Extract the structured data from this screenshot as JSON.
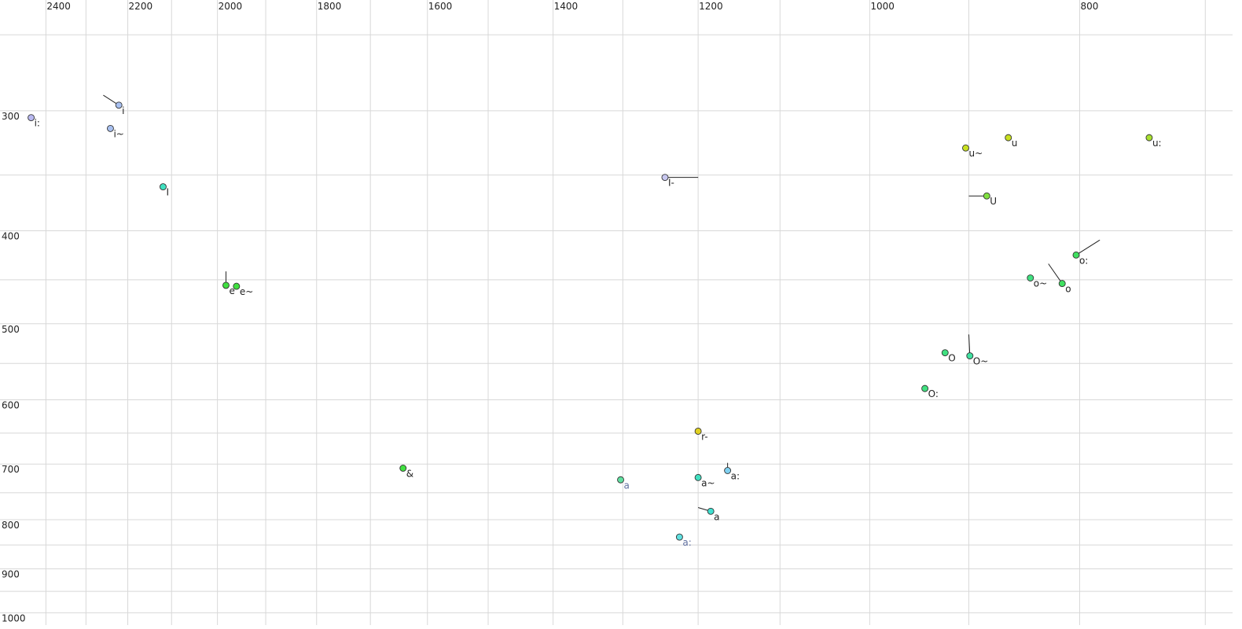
{
  "chart_data": {
    "type": "scatter",
    "xlog": true,
    "ylog": true,
    "xlim": [
      2520,
      680
    ],
    "ylim": [
      230,
      1030
    ],
    "xticks": [
      2400,
      2200,
      2000,
      1800,
      1600,
      1400,
      1200,
      1000,
      800
    ],
    "xminor": [
      2300,
      2100,
      1900,
      1700,
      1500,
      1300,
      1100,
      900,
      700
    ],
    "yticks": [
      300,
      400,
      500,
      600,
      700,
      800,
      900,
      1000
    ],
    "yminor": [
      250,
      350,
      450,
      550,
      650,
      750,
      850,
      950
    ],
    "grid": true,
    "points": [
      {
        "label": "i:",
        "x": 2438,
        "y": 305,
        "color": "#b8b8f0"
      },
      {
        "label": "i",
        "x": 2221,
        "y": 296,
        "color": "#a8c0f0",
        "tail_x": 2258,
        "tail_y": 289
      },
      {
        "label": "i~",
        "x": 2241,
        "y": 313,
        "color": "#a8c0f0"
      },
      {
        "label": "I",
        "x": 2119,
        "y": 360,
        "color": "#40e0c0"
      },
      {
        "label": "e",
        "x": 1982,
        "y": 456,
        "color": "#40e040",
        "tail_x": 1982,
        "tail_y": 441
      },
      {
        "label": "e~",
        "x": 1960,
        "y": 457,
        "color": "#40e040"
      },
      {
        "label": "I-",
        "x": 1243,
        "y": 352,
        "color": "#c8c8f0",
        "tail_x": 1200,
        "tail_y": 352
      },
      {
        "label": "u~",
        "x": 903,
        "y": 328,
        "color": "#c8e020"
      },
      {
        "label": "u",
        "x": 863,
        "y": 320,
        "color": "#c8e020"
      },
      {
        "label": "u:",
        "x": 743,
        "y": 320,
        "color": "#a8e030"
      },
      {
        "label": "U",
        "x": 883,
        "y": 368,
        "color": "#80e040",
        "tail_x": 900,
        "tail_y": 368
      },
      {
        "label": "o:",
        "x": 803,
        "y": 424,
        "color": "#40e060",
        "tail_x": 783,
        "tail_y": 409
      },
      {
        "label": "o~",
        "x": 843,
        "y": 448,
        "color": "#40e080"
      },
      {
        "label": "o",
        "x": 815,
        "y": 454,
        "color": "#40e060",
        "tail_x": 827,
        "tail_y": 433
      },
      {
        "label": "O",
        "x": 923,
        "y": 536,
        "color": "#40e080"
      },
      {
        "label": "O~",
        "x": 899,
        "y": 540,
        "color": "#40e0a0",
        "tail_x": 900,
        "tail_y": 513
      },
      {
        "label": "O:",
        "x": 943,
        "y": 584,
        "color": "#40e080"
      },
      {
        "label": "r-",
        "x": 1200,
        "y": 647,
        "color": "#e0d020"
      },
      {
        "label": "&",
        "x": 1642,
        "y": 707,
        "color": "#40e040"
      },
      {
        "label": "a",
        "x": 1303,
        "y": 727,
        "color": "#60e0a0",
        "label_color": "#6070a0"
      },
      {
        "label": "a~",
        "x": 1200,
        "y": 723,
        "color": "#40e0c0"
      },
      {
        "label": "a:",
        "x": 1163,
        "y": 711,
        "color": "#80d0f0",
        "tail_x": 1163,
        "tail_y": 698
      },
      {
        "label": "a",
        "x": 1184,
        "y": 784,
        "color": "#40e0d0",
        "tail_x": 1200,
        "tail_y": 777
      },
      {
        "label": "a:",
        "x": 1224,
        "y": 834,
        "color": "#60e0e0",
        "label_color": "#6070a0"
      }
    ]
  }
}
